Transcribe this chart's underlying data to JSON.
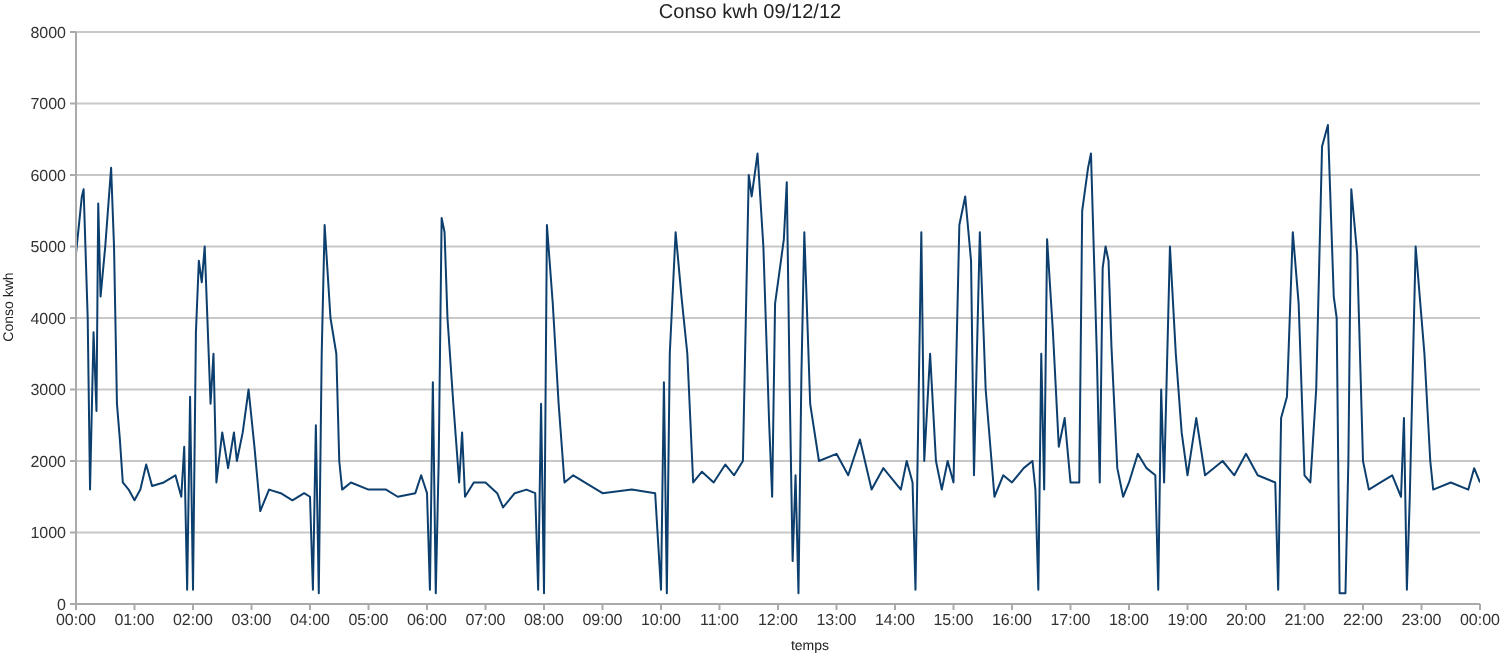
{
  "chart_data": {
    "type": "line",
    "title": "Conso kwh 09/12/12",
    "xlabel": "temps",
    "ylabel": "Conso kwh",
    "x": [
      0,
      0.1,
      0.13,
      0.2,
      0.24,
      0.3,
      0.35,
      0.38,
      0.42,
      0.5,
      0.6,
      0.65,
      0.7,
      0.75,
      0.8,
      0.9,
      1.0,
      1.1,
      1.2,
      1.3,
      1.5,
      1.7,
      1.8,
      1.85,
      1.9,
      1.95,
      2.0,
      2.05,
      2.1,
      2.15,
      2.2,
      2.3,
      2.35,
      2.4,
      2.5,
      2.6,
      2.7,
      2.75,
      2.85,
      2.95,
      3.05,
      3.15,
      3.3,
      3.5,
      3.7,
      3.9,
      4.0,
      4.05,
      4.1,
      4.15,
      4.2,
      4.25,
      4.35,
      4.45,
      4.5,
      4.55,
      4.7,
      5.0,
      5.3,
      5.5,
      5.8,
      5.9,
      6.0,
      6.05,
      6.1,
      6.15,
      6.2,
      6.25,
      6.3,
      6.35,
      6.45,
      6.55,
      6.6,
      6.65,
      6.8,
      7.0,
      7.2,
      7.3,
      7.5,
      7.7,
      7.85,
      7.9,
      7.95,
      8.0,
      8.05,
      8.15,
      8.25,
      8.35,
      8.5,
      9.0,
      9.5,
      9.9,
      10.0,
      10.05,
      10.1,
      10.15,
      10.25,
      10.35,
      10.45,
      10.55,
      10.7,
      10.9,
      11.1,
      11.25,
      11.4,
      11.5,
      11.55,
      11.65,
      11.75,
      11.85,
      11.9,
      11.95,
      12.05,
      12.1,
      12.15,
      12.2,
      12.25,
      12.3,
      12.35,
      12.4,
      12.45,
      12.55,
      12.7,
      13.0,
      13.2,
      13.4,
      13.6,
      13.8,
      14.1,
      14.2,
      14.3,
      14.35,
      14.4,
      14.45,
      14.5,
      14.6,
      14.7,
      14.8,
      14.9,
      15.0,
      15.1,
      15.2,
      15.3,
      15.35,
      15.45,
      15.55,
      15.7,
      15.85,
      16.0,
      16.2,
      16.35,
      16.4,
      16.45,
      16.5,
      16.55,
      16.6,
      16.7,
      16.8,
      16.9,
      17.0,
      17.15,
      17.2,
      17.3,
      17.35,
      17.45,
      17.5,
      17.55,
      17.6,
      17.65,
      17.7,
      17.8,
      17.9,
      18.0,
      18.15,
      18.3,
      18.45,
      18.5,
      18.55,
      18.6,
      18.7,
      18.8,
      18.9,
      19.0,
      19.15,
      19.3,
      19.6,
      19.8,
      20.0,
      20.2,
      20.5,
      20.55,
      20.6,
      20.7,
      20.8,
      20.9,
      21.0,
      21.1,
      21.2,
      21.3,
      21.4,
      21.5,
      21.55,
      21.6,
      21.7,
      21.75,
      21.8,
      21.9,
      22.0,
      22.1,
      22.3,
      22.5,
      22.65,
      22.7,
      22.75,
      22.8,
      22.9,
      23.05,
      23.15,
      23.2,
      23.5,
      23.8,
      23.9,
      24.0
    ],
    "series": [
      {
        "color": "#0d3f6e",
        "values": [
          4900,
          5700,
          5800,
          4000,
          1600,
          3800,
          2700,
          5600,
          4300,
          5000,
          6100,
          5000,
          2800,
          2300,
          1700,
          1600,
          1450,
          1600,
          1950,
          1650,
          1700,
          1800,
          1500,
          2200,
          200,
          2900,
          200,
          3800,
          4800,
          4500,
          5000,
          2800,
          3500,
          1700,
          2400,
          1900,
          2400,
          2000,
          2400,
          3000,
          2200,
          1300,
          1600,
          1550,
          1450,
          1550,
          1500,
          200,
          2500,
          150,
          3500,
          5300,
          4000,
          3500,
          2000,
          1600,
          1700,
          1600,
          1600,
          1500,
          1550,
          1800,
          1550,
          200,
          3100,
          150,
          2000,
          5400,
          5200,
          4000,
          2800,
          1700,
          2400,
          1500,
          1700,
          1700,
          1550,
          1350,
          1550,
          1600,
          1550,
          200,
          2800,
          150,
          5300,
          4200,
          2800,
          1700,
          1800,
          1550,
          1600,
          1550,
          200,
          3100,
          150,
          3500,
          5200,
          4300,
          3500,
          1700,
          1850,
          1700,
          1950,
          1800,
          2000,
          6000,
          5700,
          6300,
          5000,
          2500,
          1500,
          4200,
          4800,
          5100,
          5900,
          3000,
          600,
          1800,
          150,
          3200,
          5200,
          2800,
          2000,
          2100,
          1800,
          2300,
          1600,
          1900,
          1600,
          2000,
          1700,
          200,
          2700,
          5200,
          2000,
          3500,
          2000,
          1600,
          2000,
          1700,
          5300,
          5700,
          4800,
          1800,
          5200,
          3000,
          1500,
          1800,
          1700,
          1900,
          2000,
          1600,
          200,
          3500,
          1600,
          5100,
          3800,
          2200,
          2600,
          1700,
          1700,
          5500,
          6100,
          6300,
          3500,
          1700,
          4700,
          5000,
          4800,
          3600,
          1900,
          1500,
          1700,
          2100,
          1900,
          1800,
          200,
          3000,
          1700,
          5000,
          3500,
          2400,
          1800,
          2600,
          1800,
          2000,
          1800,
          2100,
          1800,
          1700,
          200,
          2600,
          2900,
          5200,
          4200,
          1800,
          1700,
          3000,
          6400,
          6700,
          4300,
          4000,
          150,
          150,
          2000,
          5800,
          4900,
          2000,
          1600,
          1700,
          1800,
          1500,
          2600,
          200,
          1500,
          5000,
          3500,
          2000,
          1600,
          1700,
          1600,
          1900,
          1700
        ]
      }
    ],
    "xlim": [
      0,
      24
    ],
    "xticks": [
      {
        "value": 0,
        "label": "00:00"
      },
      {
        "value": 1,
        "label": "01:00"
      },
      {
        "value": 2,
        "label": "02:00"
      },
      {
        "value": 3,
        "label": "03:00"
      },
      {
        "value": 4,
        "label": "04:00"
      },
      {
        "value": 5,
        "label": "05:00"
      },
      {
        "value": 6,
        "label": "06:00"
      },
      {
        "value": 7,
        "label": "07:00"
      },
      {
        "value": 8,
        "label": "08:00"
      },
      {
        "value": 9,
        "label": "09:00"
      },
      {
        "value": 10,
        "label": "10:00"
      },
      {
        "value": 11,
        "label": "11:00"
      },
      {
        "value": 12,
        "label": "12:00"
      },
      {
        "value": 13,
        "label": "13:00"
      },
      {
        "value": 14,
        "label": "14:00"
      },
      {
        "value": 15,
        "label": "15:00"
      },
      {
        "value": 16,
        "label": "16:00"
      },
      {
        "value": 17,
        "label": "17:00"
      },
      {
        "value": 18,
        "label": "18:00"
      },
      {
        "value": 19,
        "label": "19:00"
      },
      {
        "value": 20,
        "label": "20:00"
      },
      {
        "value": 21,
        "label": "21:00"
      },
      {
        "value": 22,
        "label": "22:00"
      },
      {
        "value": 23,
        "label": "23:00"
      },
      {
        "value": 24,
        "label": "00:00"
      }
    ],
    "ylim": [
      0,
      8000
    ],
    "yticks": [
      0,
      1000,
      2000,
      3000,
      4000,
      5000,
      6000,
      7000,
      8000
    ],
    "grid": "y",
    "legend": false,
    "marker": "none",
    "line_style": "solid"
  }
}
